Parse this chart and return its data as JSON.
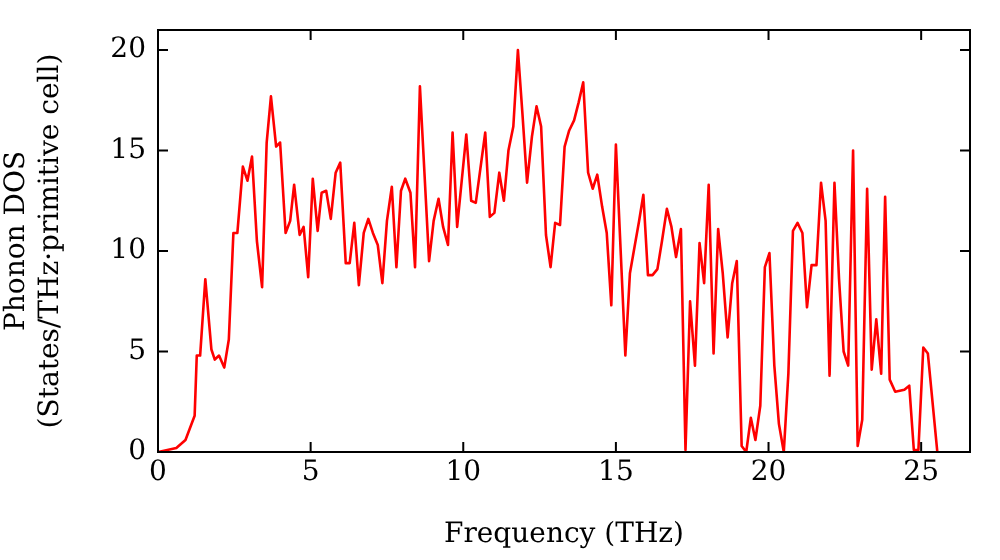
{
  "chart_data": {
    "type": "line",
    "xlabel": "Frequency (THz)",
    "ylabel": "Phonon DOS\n(States/THz·primitive cell)",
    "xlim": [
      0,
      26.6
    ],
    "ylim": [
      0,
      21
    ],
    "xticks": [
      0,
      5,
      10,
      15,
      20,
      25
    ],
    "yticks": [
      0,
      5,
      10,
      15,
      20
    ],
    "grid": false,
    "legend": false,
    "marker": "none",
    "line_style": "solid",
    "series": [
      {
        "color": "#ff0000",
        "x": [
          0,
          0.6,
          0.9,
          1.2,
          1.27,
          1.38,
          1.55,
          1.75,
          1.86,
          2.0,
          2.17,
          2.32,
          2.47,
          2.6,
          2.78,
          2.93,
          3.08,
          3.24,
          3.41,
          3.56,
          3.7,
          3.87,
          4.0,
          4.18,
          4.33,
          4.46,
          4.64,
          4.77,
          4.92,
          5.07,
          5.23,
          5.36,
          5.51,
          5.66,
          5.82,
          5.97,
          6.15,
          6.28,
          6.43,
          6.58,
          6.74,
          6.89,
          7.04,
          7.2,
          7.35,
          7.5,
          7.66,
          7.81,
          7.96,
          8.1,
          8.27,
          8.42,
          8.58,
          8.88,
          9.03,
          9.19,
          9.34,
          9.5,
          9.65,
          9.8,
          10.1,
          10.26,
          10.41,
          10.72,
          10.87,
          11.02,
          11.18,
          11.33,
          11.48,
          11.64,
          11.79,
          11.94,
          12.09,
          12.25,
          12.4,
          12.55,
          12.71,
          12.86,
          13.01,
          13.17,
          13.32,
          13.47,
          13.63,
          13.78,
          13.93,
          14.09,
          14.24,
          14.39,
          14.55,
          14.7,
          14.85,
          15.0,
          15.31,
          15.46,
          15.61,
          15.76,
          15.9,
          16.05,
          16.2,
          16.36,
          16.51,
          16.67,
          16.82,
          16.97,
          17.13,
          17.28,
          17.43,
          17.59,
          17.74,
          17.89,
          18.04,
          18.2,
          18.35,
          18.5,
          18.66,
          18.81,
          18.96,
          19.12,
          19.27,
          19.42,
          19.57,
          19.73,
          19.88,
          20.03,
          20.19,
          20.34,
          20.5,
          20.65,
          20.8,
          20.95,
          21.11,
          21.26,
          21.41,
          21.57,
          21.72,
          21.87,
          22.0,
          22.16,
          22.31,
          22.46,
          22.61,
          22.77,
          22.92,
          23.07,
          23.23,
          23.38,
          23.53,
          23.69,
          23.82,
          23.97,
          24.15,
          24.45,
          24.61,
          24.76,
          24.91,
          25.07,
          25.22,
          25.53
        ],
        "values": [
          0,
          0.2,
          0.6,
          1.8,
          4.8,
          4.8,
          8.6,
          5.1,
          4.6,
          4.8,
          4.2,
          5.6,
          10.9,
          10.9,
          14.2,
          13.5,
          14.7,
          10.5,
          8.2,
          15.4,
          17.7,
          15.2,
          15.4,
          10.9,
          11.5,
          13.3,
          10.8,
          11.2,
          8.7,
          13.6,
          11.0,
          12.9,
          13.0,
          11.6,
          13.9,
          14.4,
          9.4,
          9.4,
          11.4,
          8.3,
          10.9,
          11.6,
          10.9,
          10.3,
          8.4,
          11.5,
          13.2,
          9.2,
          13.0,
          13.6,
          12.9,
          9.2,
          18.2,
          9.5,
          11.5,
          12.6,
          11.2,
          10.3,
          15.9,
          11.2,
          15.8,
          12.5,
          12.4,
          15.9,
          11.7,
          11.9,
          13.9,
          12.5,
          15.0,
          16.2,
          20.0,
          16.8,
          13.4,
          15.7,
          17.2,
          16.2,
          10.8,
          9.2,
          11.4,
          11.3,
          15.2,
          16.0,
          16.5,
          17.4,
          18.4,
          13.9,
          13.1,
          13.8,
          12.2,
          10.9,
          7.3,
          15.3,
          4.8,
          8.9,
          10.2,
          11.5,
          12.8,
          8.8,
          8.8,
          9.1,
          10.5,
          12.1,
          11.2,
          9.7,
          11.1,
          0.1,
          7.5,
          4.3,
          10.4,
          8.4,
          13.3,
          4.9,
          11.1,
          8.9,
          5.7,
          8.4,
          9.5,
          0.3,
          0,
          1.7,
          0.6,
          2.3,
          9.2,
          9.9,
          4.3,
          1.4,
          0,
          3.9,
          11.0,
          11.4,
          10.9,
          7.2,
          9.3,
          9.3,
          13.4,
          11.5,
          3.8,
          13.4,
          8.6,
          5.0,
          4.3,
          15.0,
          0.3,
          1.6,
          13.1,
          4.1,
          6.6,
          3.9,
          12.7,
          3.6,
          3.0,
          3.1,
          3.3,
          0.1,
          0.1,
          5.2,
          4.9,
          0
        ]
      }
    ]
  }
}
